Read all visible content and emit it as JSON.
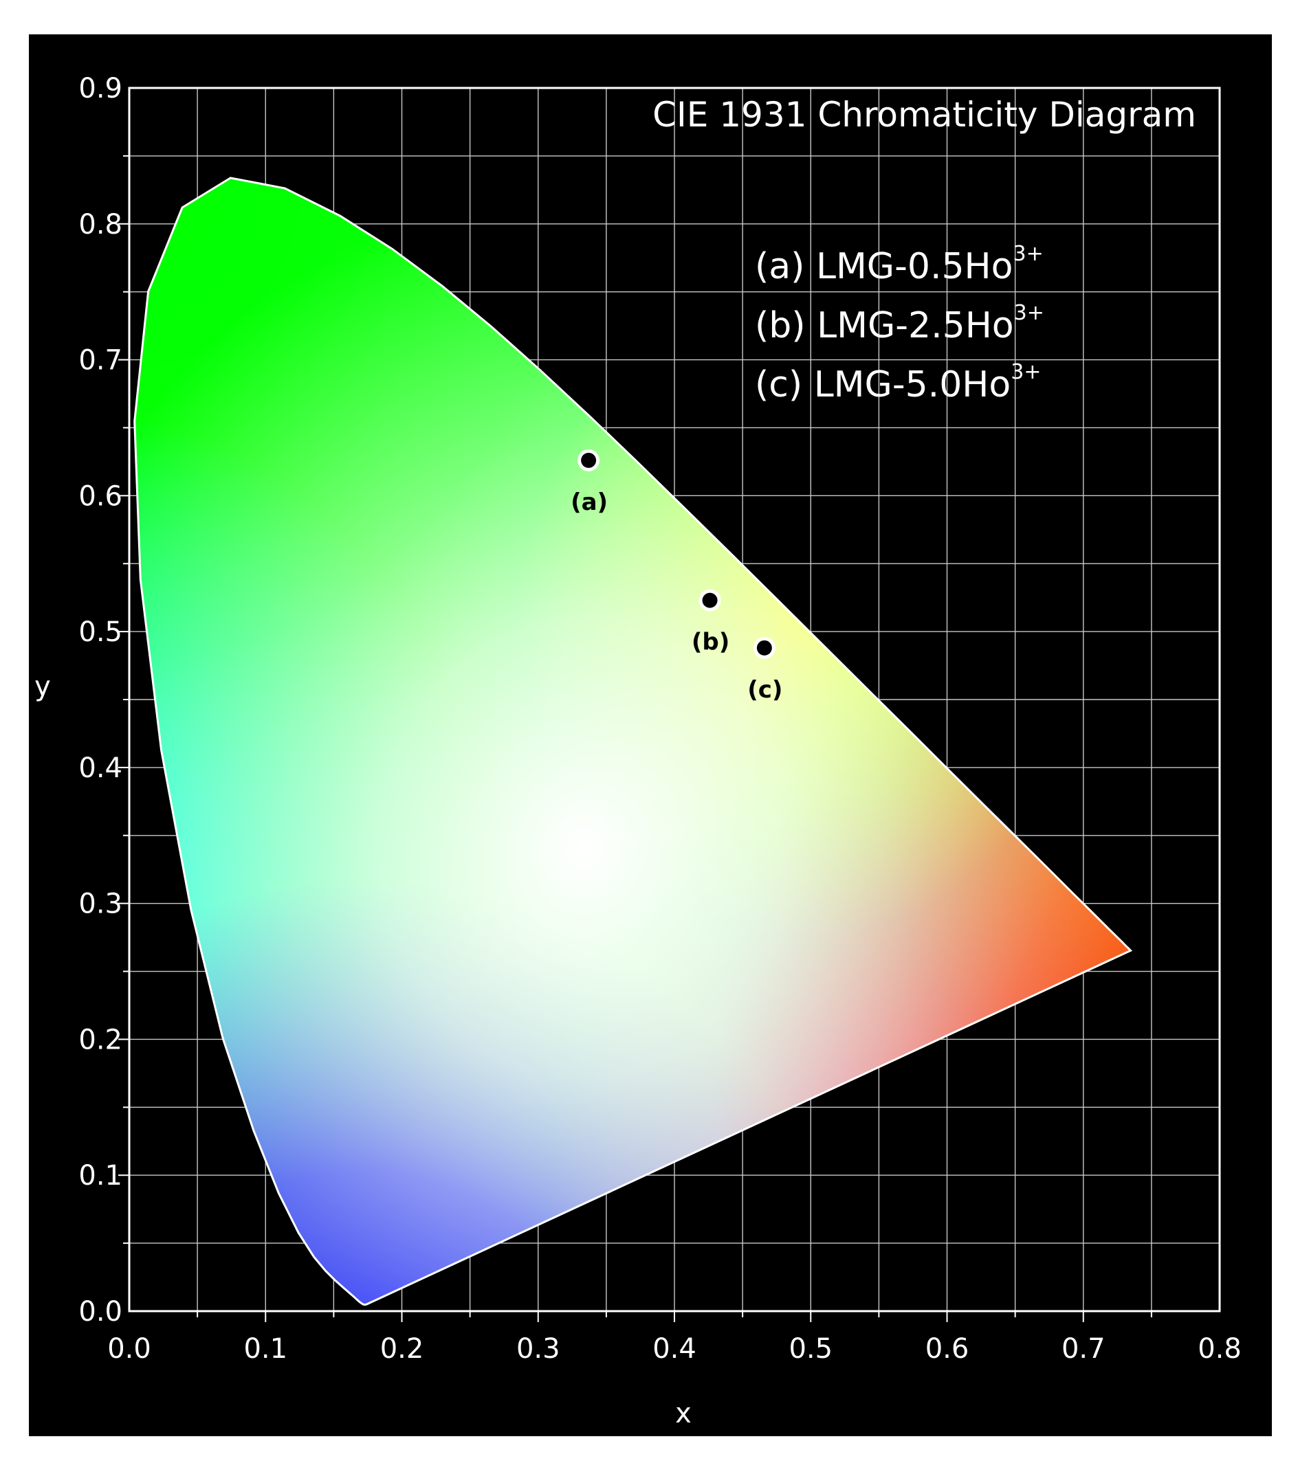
{
  "chart_data": {
    "type": "scatter",
    "title": "CIE 1931 Chromaticity Diagram",
    "xlabel": "x",
    "ylabel": "y",
    "xlim": [
      0.0,
      0.8
    ],
    "ylim": [
      0.0,
      0.9
    ],
    "x_ticks": [
      "0.0",
      "0.1",
      "0.2",
      "0.3",
      "0.4",
      "0.5",
      "0.6",
      "0.7",
      "0.8"
    ],
    "y_ticks": [
      "0.0",
      "0.1",
      "0.2",
      "0.3",
      "0.4",
      "0.5",
      "0.6",
      "0.7",
      "0.8",
      "0.9"
    ],
    "grid": true,
    "background": "#000000",
    "grid_color": "#c8c8c8",
    "legend_position": "top-right",
    "legend": [
      "(a) LMG-0.5Ho",
      "(b) LMG-2.5Ho",
      "(c) LMG-5.0Ho"
    ],
    "legend_superscript": "3+",
    "points": [
      {
        "label": "(a)",
        "x": 0.337,
        "y": 0.626
      },
      {
        "label": "(b)",
        "x": 0.426,
        "y": 0.523
      },
      {
        "label": "(c)",
        "x": 0.466,
        "y": 0.488
      }
    ]
  }
}
